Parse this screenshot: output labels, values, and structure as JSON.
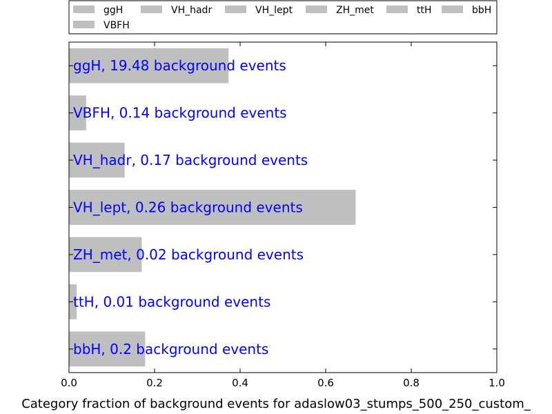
{
  "chart_data": {
    "type": "bar",
    "orientation": "horizontal",
    "categories": [
      "ggH",
      "VBFH",
      "VH_hadr",
      "VH_lept",
      "ZH_met",
      "ttH",
      "bbH"
    ],
    "values": [
      0.373,
      0.04,
      0.13,
      0.67,
      0.17,
      0.018,
      0.178
    ],
    "bar_labels": [
      "ggH, 19.48 background events",
      "VBFH, 0.14 background events",
      "VH_hadr, 0.17 background events",
      "VH_lept, 0.26 background events",
      "ZH_met, 0.02 background events",
      "ttH, 0.01 background events",
      "bbH, 0.2 background events"
    ],
    "legend": [
      "ggH",
      "VH_hadr",
      "VH_lept",
      "ZH_met",
      "ttH",
      "bbH",
      "VBFH"
    ],
    "xlabel": "Category fraction of background events for adaslow03_stumps_500_250_custom_",
    "xlim": [
      0,
      1
    ],
    "xticks": [
      "0.0",
      "0.2",
      "0.4",
      "0.6",
      "0.8",
      "1.0"
    ],
    "grid": false,
    "legend_placement": "top"
  },
  "colors": {
    "bar": "#bfbfbf",
    "label": "#0000ff",
    "axis": "#000000"
  }
}
